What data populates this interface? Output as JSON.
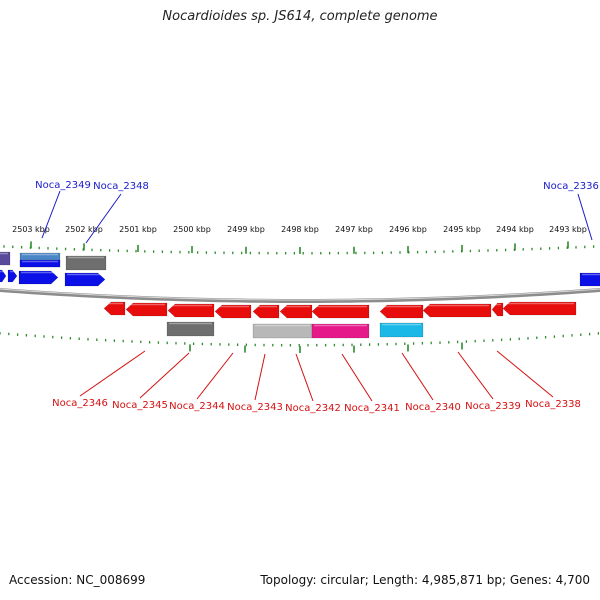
{
  "title": "Nocardioides sp. JS614, complete genome",
  "footer": {
    "accession": "Accession: NC_008699",
    "summary": "Topology: circular; Length: 4,985,871 bp; Genes: 4,700"
  },
  "colors": {
    "backbone": "#8c8c8c",
    "tick": "#2e8b2e",
    "label_top": "#1a1acc",
    "label_bottom": "#d41010",
    "gene_forward": "#0a10e6",
    "gene_reverse": "#e80d0d",
    "gene_gray": "#6e6e6e",
    "gene_lightgray": "#b8b8b8",
    "gene_magenta": "#e6198a",
    "gene_cyan": "#1ab8e6",
    "gene_steelblue": "#4a86c6",
    "gene_violet": "#5a4a9c"
  },
  "scale_labels": [
    "2503 kbp",
    "2502 kbp",
    "2501 kbp",
    "2500 kbp",
    "2499 kbp",
    "2498 kbp",
    "2497 kbp",
    "2496 kbp",
    "2495 kbp",
    "2494 kbp",
    "2493 kbp"
  ],
  "top_genes": [
    "Noca_2349",
    "Noca_2348",
    "Noca_2336"
  ],
  "bottom_genes": [
    "Noca_2346",
    "Noca_2345",
    "Noca_2344",
    "Noca_2343",
    "Noca_2342",
    "Noca_2341",
    "Noca_2340",
    "Noca_2339",
    "Noca_2338"
  ]
}
